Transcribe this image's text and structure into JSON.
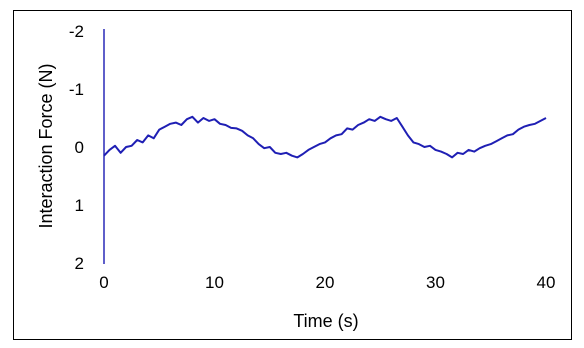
{
  "chart_data": {
    "type": "line",
    "title": "",
    "xlabel": "Time (s)",
    "ylabel": "Interaction Force (N)",
    "xlim": [
      0,
      40
    ],
    "ylim": [
      -2,
      2
    ],
    "y_axis_inverted": true,
    "x_ticks": [
      "0",
      "10",
      "20",
      "30",
      "40"
    ],
    "y_ticks": [
      "-2",
      "-1",
      "0",
      "1",
      "2"
    ],
    "grid": false,
    "legend": "none",
    "series": [
      {
        "color": "#1f1fb4",
        "x": [
          0,
          0.5,
          1,
          1.5,
          2,
          2.5,
          3,
          3.5,
          4,
          4.5,
          5,
          5.5,
          6,
          6.5,
          7,
          7.5,
          8,
          8.5,
          9,
          9.5,
          10,
          10.5,
          11,
          11.5,
          12,
          12.5,
          13,
          13.5,
          14,
          14.5,
          15,
          15.5,
          16,
          16.5,
          17,
          17.5,
          18,
          18.5,
          19,
          19.5,
          20,
          20.5,
          21,
          21.5,
          22,
          22.5,
          23,
          23.5,
          24,
          24.5,
          25,
          25.5,
          26,
          26.5,
          27,
          27.5,
          28,
          28.5,
          29,
          29.5,
          30,
          30.5,
          31,
          31.5,
          32,
          32.5,
          33,
          33.5,
          34,
          34.5,
          35,
          35.5,
          36,
          36.5,
          37,
          37.5,
          38,
          38.5,
          39,
          39.5,
          40
        ],
        "y": [
          0.15,
          0.05,
          -0.02,
          0.1,
          0.0,
          -0.02,
          -0.12,
          -0.08,
          -0.2,
          -0.15,
          -0.3,
          -0.35,
          -0.4,
          -0.42,
          -0.38,
          -0.48,
          -0.52,
          -0.42,
          -0.5,
          -0.45,
          -0.48,
          -0.4,
          -0.38,
          -0.33,
          -0.32,
          -0.28,
          -0.2,
          -0.15,
          -0.05,
          0.02,
          0.0,
          0.1,
          0.12,
          0.1,
          0.15,
          0.18,
          0.12,
          0.05,
          0.0,
          -0.05,
          -0.08,
          -0.15,
          -0.2,
          -0.22,
          -0.32,
          -0.3,
          -0.38,
          -0.42,
          -0.48,
          -0.45,
          -0.52,
          -0.48,
          -0.45,
          -0.5,
          -0.35,
          -0.2,
          -0.08,
          -0.05,
          0.0,
          -0.02,
          0.05,
          0.08,
          0.12,
          0.18,
          0.1,
          0.12,
          0.05,
          0.08,
          0.02,
          -0.02,
          -0.05,
          -0.1,
          -0.15,
          -0.2,
          -0.22,
          -0.3,
          -0.35,
          -0.38,
          -0.4,
          -0.45,
          -0.5
        ]
      }
    ]
  }
}
